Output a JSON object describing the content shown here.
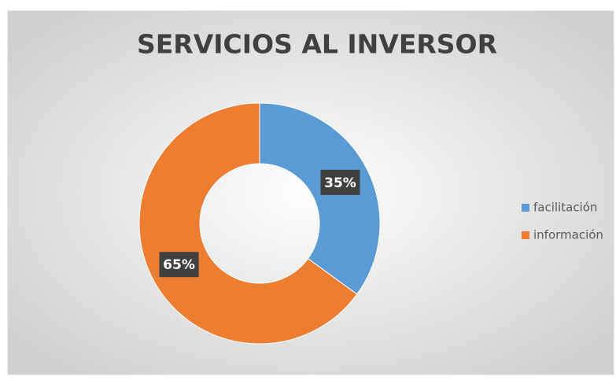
{
  "chart_data": {
    "type": "donut",
    "title": "SERVICIOS AL INVERSOR",
    "categories": [
      "facilitación",
      "información"
    ],
    "values": [
      35,
      65
    ],
    "value_labels": [
      "35%",
      "65%"
    ],
    "colors": [
      "#5b9bd5",
      "#ed7d31"
    ],
    "legend": "right"
  }
}
